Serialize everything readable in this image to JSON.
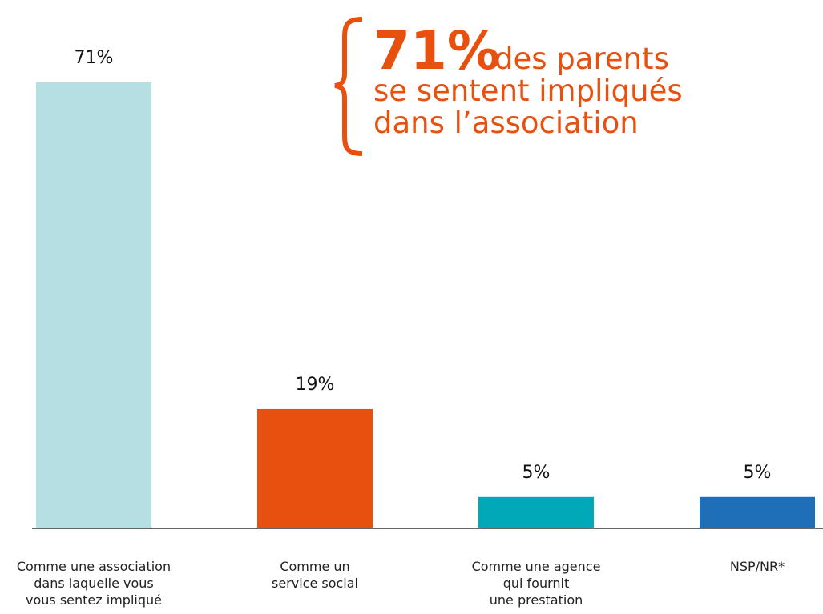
{
  "chart_data": {
    "type": "bar",
    "categories": [
      "Comme une association\ndans laquelle vous\nvous sentez impliqué",
      "Comme un\nservice social",
      "Comme une agence\nqui fournit\nune prestation",
      "NSP/NR*"
    ],
    "values": [
      71,
      19,
      5,
      5
    ],
    "value_labels": [
      "71%",
      "19%",
      "5%",
      "5%"
    ],
    "colors": [
      "#b6dfe3",
      "#e8500f",
      "#00a8b8",
      "#1f6fb8"
    ],
    "ylim": [
      0,
      71
    ],
    "annotation": {
      "highlight": "71%",
      "lines": [
        "des parents",
        "se sentent impliqués",
        "dans l’association"
      ],
      "color": "#e8500f"
    }
  }
}
